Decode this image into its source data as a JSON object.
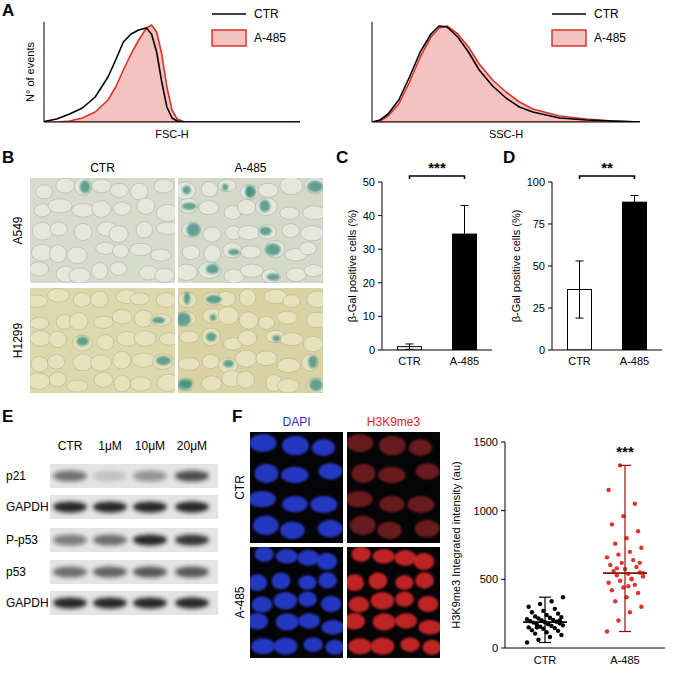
{
  "panel_labels": [
    "A",
    "B",
    "C",
    "D",
    "E",
    "F"
  ],
  "chart_data": [
    {
      "type": "line",
      "x_label": "FSC-H",
      "y_label": "N° of events",
      "x": [
        0,
        5,
        10,
        15,
        20,
        25,
        28,
        31,
        34,
        37,
        40,
        42,
        44,
        46,
        48,
        50,
        52,
        55,
        60,
        100
      ],
      "series": [
        {
          "name": "CTR",
          "type": "line",
          "color": "#000000",
          "values": [
            0.5,
            3,
            8,
            14,
            25,
            45,
            62,
            80,
            88,
            92,
            94,
            88,
            70,
            40,
            15,
            4,
            1,
            0,
            0,
            0
          ]
        },
        {
          "name": "A-485",
          "type": "area",
          "color": "#d9342b",
          "values": [
            0,
            0,
            1,
            4,
            10,
            22,
            35,
            52,
            68,
            82,
            94,
            97,
            90,
            68,
            35,
            12,
            3,
            0,
            0,
            0
          ]
        }
      ],
      "xlim": [
        0,
        100
      ],
      "ylim": [
        0,
        100
      ],
      "tick_labels": false,
      "legend": "top-right"
    },
    {
      "type": "line",
      "x_label": "SSC-H",
      "x": [
        0,
        3,
        6,
        10,
        14,
        18,
        22,
        25,
        28,
        32,
        36,
        40,
        45,
        50,
        55,
        60,
        70,
        80,
        90,
        100
      ],
      "series": [
        {
          "name": "CTR",
          "type": "line",
          "color": "#000000",
          "values": [
            0,
            2,
            8,
            22,
            45,
            70,
            88,
            96,
            95,
            85,
            70,
            52,
            36,
            24,
            15,
            10,
            4,
            2,
            1,
            0
          ]
        },
        {
          "name": "A-485",
          "type": "area",
          "color": "#d9342b",
          "values": [
            0,
            1,
            6,
            18,
            40,
            65,
            85,
            94,
            96,
            88,
            75,
            58,
            42,
            30,
            20,
            13,
            6,
            3,
            1,
            0
          ]
        }
      ],
      "xlim": [
        0,
        100
      ],
      "ylim": [
        0,
        100
      ],
      "tick_labels": false,
      "legend": "top-right"
    },
    {
      "type": "bar",
      "y_label": "β-Gal positive cells (%)",
      "categories": [
        "CTR",
        "A-485"
      ],
      "values": [
        1,
        34.5
      ],
      "errors": [
        0.8,
        8.5
      ],
      "colors": [
        "#ffffff",
        "#000000"
      ],
      "ylim": [
        0,
        50
      ],
      "yticks": [
        0,
        10,
        20,
        30,
        40,
        50
      ],
      "annotation": "***"
    },
    {
      "type": "bar",
      "y_label": "β-Gal positive cells (%)",
      "categories": [
        "CTR",
        "A-485"
      ],
      "values": [
        36,
        88
      ],
      "errors": [
        17,
        4
      ],
      "colors": [
        "#ffffff",
        "#000000"
      ],
      "ylim": [
        0,
        100
      ],
      "yticks": [
        0,
        25,
        50,
        75,
        100
      ],
      "annotation": "**"
    },
    {
      "type": "scatter",
      "y_label": "H3K9me3 Integrated intensity (au)",
      "categories": [
        "CTR",
        "A-485"
      ],
      "colors": [
        "#000000",
        "#e8302a"
      ],
      "points": [
        [
          40,
          60,
          80,
          95,
          105,
          115,
          125,
          130,
          140,
          145,
          150,
          155,
          160,
          165,
          170,
          175,
          180,
          185,
          188,
          192,
          195,
          200,
          205,
          210,
          215,
          220,
          225,
          230,
          240,
          250,
          260,
          270,
          285,
          300,
          320,
          340,
          370,
          150,
          175,
          200
        ],
        [
          120,
          200,
          260,
          300,
          340,
          370,
          400,
          420,
          440,
          460,
          475,
          490,
          505,
          520,
          530,
          540,
          550,
          560,
          575,
          590,
          605,
          620,
          640,
          660,
          680,
          700,
          730,
          760,
          800,
          850,
          900,
          960,
          1050,
          1150,
          1330,
          500,
          545,
          580,
          450,
          620
        ]
      ],
      "box": [
        {
          "min": 40,
          "median": 188,
          "max": 370
        },
        {
          "min": 120,
          "median": 545,
          "max": 1330
        }
      ],
      "ylim": [
        0,
        1500
      ],
      "yticks": [
        0,
        500,
        1000,
        1500
      ],
      "annotation": "***"
    }
  ],
  "micrographs_b": {
    "columns": [
      "CTR",
      "A-485"
    ],
    "rows": [
      "A549",
      "H1299"
    ]
  },
  "western_blot": {
    "lanes": [
      "CTR",
      "1μM",
      "10μM",
      "20μM"
    ],
    "rows": [
      {
        "label": "p21",
        "intensity": [
          0.55,
          0.15,
          0.4,
          0.75
        ]
      },
      {
        "label": "GAPDH",
        "intensity": [
          0.95,
          0.95,
          0.95,
          0.95
        ]
      },
      {
        "label": "P-p53",
        "intensity": [
          0.5,
          0.6,
          0.95,
          0.85
        ]
      },
      {
        "label": "p53",
        "intensity": [
          0.6,
          0.65,
          0.7,
          0.7
        ]
      },
      {
        "label": "GAPDH",
        "intensity": [
          0.95,
          0.95,
          0.95,
          0.95
        ]
      }
    ]
  },
  "micrographs_f": {
    "columns": [
      "DAPI",
      "H3K9me3"
    ],
    "rows": [
      "CTR",
      "A-485"
    ]
  }
}
